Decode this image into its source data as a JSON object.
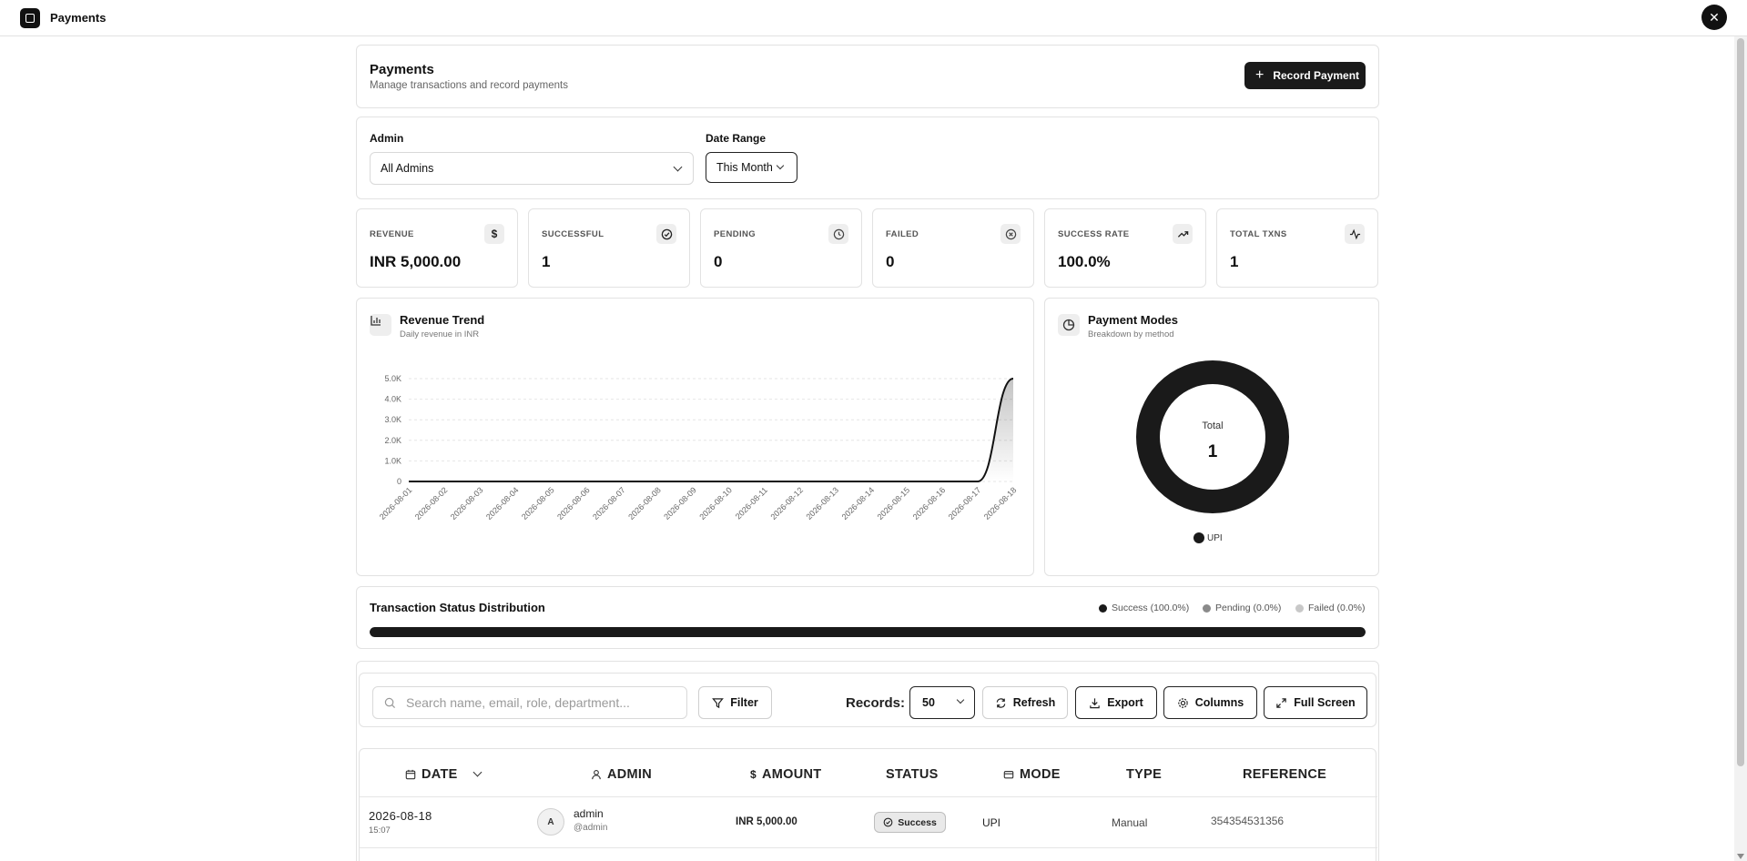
{
  "window": {
    "title": "Payments",
    "close_label": "✕"
  },
  "header": {
    "title": "Payments",
    "subtitle": "Manage transactions and record payments",
    "record_button": "Record Payment"
  },
  "filters": {
    "admin_label": "Admin",
    "admin_value": "All Admins",
    "date_label": "Date Range",
    "date_value": "This Month"
  },
  "kpis": [
    {
      "label": "REVENUE",
      "value": "INR 5,000.00",
      "icon": "dollar-icon"
    },
    {
      "label": "SUCCESSFUL",
      "value": "1",
      "icon": "check-circle-icon"
    },
    {
      "label": "PENDING",
      "value": "0",
      "icon": "clock-icon"
    },
    {
      "label": "FAILED",
      "value": "0",
      "icon": "x-circle-icon"
    },
    {
      "label": "SUCCESS RATE",
      "value": "100.0%",
      "icon": "trending-up-icon"
    },
    {
      "label": "TOTAL TXNS",
      "value": "1",
      "icon": "activity-icon"
    }
  ],
  "revenue_trend": {
    "title": "Revenue Trend",
    "subtitle": "Daily revenue in INR"
  },
  "payment_modes": {
    "title": "Payment Modes",
    "subtitle": "Breakdown by method",
    "total_label": "Total",
    "total_value": "1",
    "legend": "UPI"
  },
  "chart_data": [
    {
      "type": "area",
      "title": "Revenue Trend",
      "subtitle": "Daily revenue in INR",
      "x": [
        "2026-08-01",
        "2026-08-02",
        "2026-08-03",
        "2026-08-04",
        "2026-08-05",
        "2026-08-06",
        "2026-08-07",
        "2026-08-08",
        "2026-08-09",
        "2026-08-10",
        "2026-08-11",
        "2026-08-12",
        "2026-08-13",
        "2026-08-14",
        "2026-08-15",
        "2026-08-16",
        "2026-08-17",
        "2026-08-18"
      ],
      "values": [
        0,
        0,
        0,
        0,
        0,
        0,
        0,
        0,
        0,
        0,
        0,
        0,
        0,
        0,
        0,
        0,
        0,
        5000
      ],
      "yticks": [
        "0",
        "1.0K",
        "2.0K",
        "3.0K",
        "4.0K",
        "5.0K"
      ],
      "ylim": [
        0,
        5000
      ],
      "grid": true,
      "color": "#111111"
    },
    {
      "type": "pie",
      "title": "Payment Modes",
      "subtitle": "Breakdown by method",
      "categories": [
        "UPI"
      ],
      "values": [
        1
      ],
      "colors": [
        "#1a1a1a"
      ]
    }
  ],
  "status_distribution": {
    "title": "Transaction Status Distribution",
    "success": "Success (100.0%)",
    "pending": "Pending (0.0%)",
    "failed": "Failed (0.0%)",
    "success_fraction": 1.0,
    "colors": {
      "success": "#1a1a1a",
      "pending": "#8a8a8a",
      "failed": "#c8c8c8"
    }
  },
  "toolbar": {
    "search_placeholder": "Search name, email, role, department...",
    "filter_label": "Filter",
    "records_label": "Records:",
    "records_value": "50",
    "refresh_label": "Refresh",
    "export_label": "Export",
    "columns_label": "Columns",
    "fullscreen_label": "Full Screen"
  },
  "table": {
    "columns": [
      "DATE",
      "ADMIN",
      "AMOUNT",
      "STATUS",
      "MODE",
      "TYPE",
      "REFERENCE"
    ],
    "rows": [
      {
        "date": "2026-08-18",
        "time": "15:07",
        "avatar": "A",
        "admin": "admin",
        "handle": "@admin",
        "amount": "INR 5,000.00",
        "status": "Success",
        "mode": "UPI",
        "type": "Manual",
        "reference": "354354531356"
      }
    ]
  }
}
